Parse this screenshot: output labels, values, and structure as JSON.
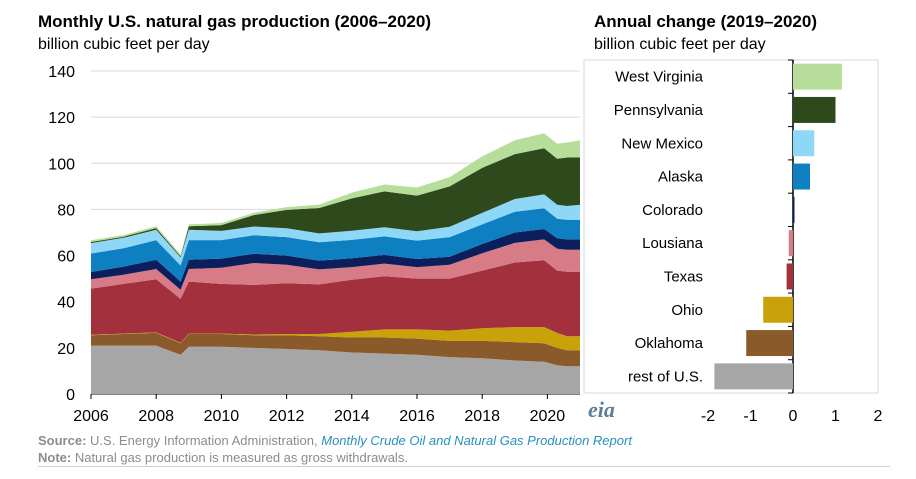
{
  "left_chart": {
    "title": "Monthly U.S. natural gas production (2006–2020)",
    "subtitle": "billion cubic feet per day"
  },
  "right_chart": {
    "title": "Annual change (2019–2020)",
    "subtitle": "billion cubic feet per day"
  },
  "footer": {
    "source_label": "Source:",
    "source_text": " U.S. Energy Information Administration, ",
    "source_link": "Monthly Crude Oil and Natural Gas Production Report",
    "note_label": "Note:",
    "note_text": " Natural gas production is measured as gross withdrawals."
  },
  "logo_text": "eia",
  "colors": {
    "rest": "#a6a6a6",
    "oklahoma": "#8b5a2b",
    "ohio": "#c9a10a",
    "texas": "#a3303d",
    "louisiana": "#d77b86",
    "colorado": "#0c1f5c",
    "alaska": "#0e7fc1",
    "new_mexico": "#8ed7f6",
    "pennsylvania": "#2e4a1d",
    "west_virginia": "#b7dd9a"
  },
  "chart_data": [
    {
      "type": "area",
      "stacked": true,
      "x_ticks": [
        "2006",
        "2008",
        "2010",
        "2012",
        "2014",
        "2016",
        "2018",
        "2020"
      ],
      "y_ticks": [
        "0",
        "20",
        "40",
        "60",
        "80",
        "100",
        "120",
        "140"
      ],
      "xlim": [
        2006,
        2021
      ],
      "ylim": [
        0,
        140
      ],
      "grid": "horizontal",
      "x": [
        2006,
        2007,
        2008,
        2008.75,
        2009,
        2010,
        2011,
        2012,
        2013,
        2014,
        2015,
        2016,
        2017,
        2018,
        2019,
        2019.9,
        2020.3,
        2020.6,
        2021
      ],
      "series": [
        {
          "key": "rest",
          "color": "#a6a6a6",
          "values": [
            21,
            21,
            21,
            17,
            20.5,
            20.5,
            20,
            19.5,
            19,
            18,
            17.5,
            17,
            16,
            15.5,
            14.5,
            14,
            12.5,
            12,
            12
          ]
        },
        {
          "key": "oklahoma",
          "color": "#8b5a2b",
          "values": [
            4.5,
            5,
            5.5,
            5,
            5.5,
            5.5,
            5.5,
            6,
            6,
            6.5,
            7,
            7,
            7,
            7.5,
            8,
            8,
            7.5,
            7,
            7
          ]
        },
        {
          "key": "ohio",
          "color": "#c9a10a",
          "values": [
            0.2,
            0.2,
            0.2,
            0.2,
            0.2,
            0.2,
            0.3,
            0.5,
            1,
            2.5,
            3.5,
            4,
            4.5,
            5.5,
            6.5,
            7,
            6.5,
            6,
            6
          ]
        },
        {
          "key": "texas",
          "color": "#a3303d",
          "values": [
            20,
            21.5,
            23,
            19,
            22.5,
            21.5,
            21.5,
            22,
            21.5,
            22.5,
            23,
            22,
            22.5,
            25,
            28,
            29,
            27,
            28,
            28
          ]
        },
        {
          "key": "louisiana",
          "color": "#d77b86",
          "values": [
            4,
            4,
            4.5,
            4,
            5.5,
            7,
            9.5,
            8,
            6.5,
            5.5,
            5.5,
            5,
            6,
            7.5,
            8.5,
            9,
            9.5,
            9.5,
            9.5
          ]
        },
        {
          "key": "colorado",
          "color": "#0c1f5c",
          "values": [
            3.2,
            3.5,
            4,
            3.5,
            4,
            4,
            4,
            4,
            3.8,
            3.8,
            3.8,
            3.5,
            3.5,
            4,
            4.5,
            4.5,
            4.5,
            4.5,
            4.5
          ]
        },
        {
          "key": "alaska",
          "color": "#0e7fc1",
          "values": [
            8,
            8,
            8.5,
            7,
            8.5,
            8,
            8,
            8,
            8,
            8,
            8,
            8,
            8.5,
            8.5,
            9,
            9,
            8.5,
            8.5,
            8.5
          ]
        },
        {
          "key": "new_mexico",
          "color": "#8ed7f6",
          "values": [
            4.5,
            4.5,
            4.5,
            3.5,
            4.5,
            4,
            3.8,
            3.8,
            3.8,
            4,
            4,
            4,
            4.5,
            5,
            5.5,
            6,
            6,
            6,
            6.5
          ]
        },
        {
          "key": "pennsylvania",
          "color": "#2e4a1d",
          "values": [
            0.5,
            0.5,
            0.7,
            0.5,
            1.5,
            2.5,
            5,
            8,
            11,
            14,
            15.5,
            15.5,
            17.5,
            19.5,
            19.5,
            20,
            20,
            21,
            20.5
          ]
        },
        {
          "key": "west_virginia",
          "color": "#b7dd9a",
          "values": [
            0.7,
            0.7,
            0.8,
            0.7,
            0.8,
            0.9,
            1,
            1.2,
            1.5,
            2.5,
            3,
            3.5,
            4,
            5,
            6,
            6.5,
            6.5,
            6.5,
            7.5
          ]
        }
      ]
    },
    {
      "type": "bar",
      "orientation": "horizontal",
      "x_ticks": [
        "-2",
        "-1",
        "0",
        "1",
        "2"
      ],
      "xlim": [
        -2,
        2
      ],
      "categories": [
        "West Virginia",
        "Pennsylvania",
        "New Mexico",
        "Alaska",
        "Colorado",
        "Lousiana",
        "Texas",
        "Ohio",
        "Oklahoma",
        "rest of U.S."
      ],
      "values": [
        1.15,
        1.0,
        0.5,
        0.4,
        0.02,
        -0.1,
        -0.15,
        -0.7,
        -1.1,
        -1.85
      ],
      "colors": [
        "#b7dd9a",
        "#2e4a1d",
        "#8ed7f6",
        "#0e7fc1",
        "#0c1f5c",
        "#d77b86",
        "#a3303d",
        "#c9a10a",
        "#8b5a2b",
        "#a6a6a6"
      ]
    }
  ]
}
